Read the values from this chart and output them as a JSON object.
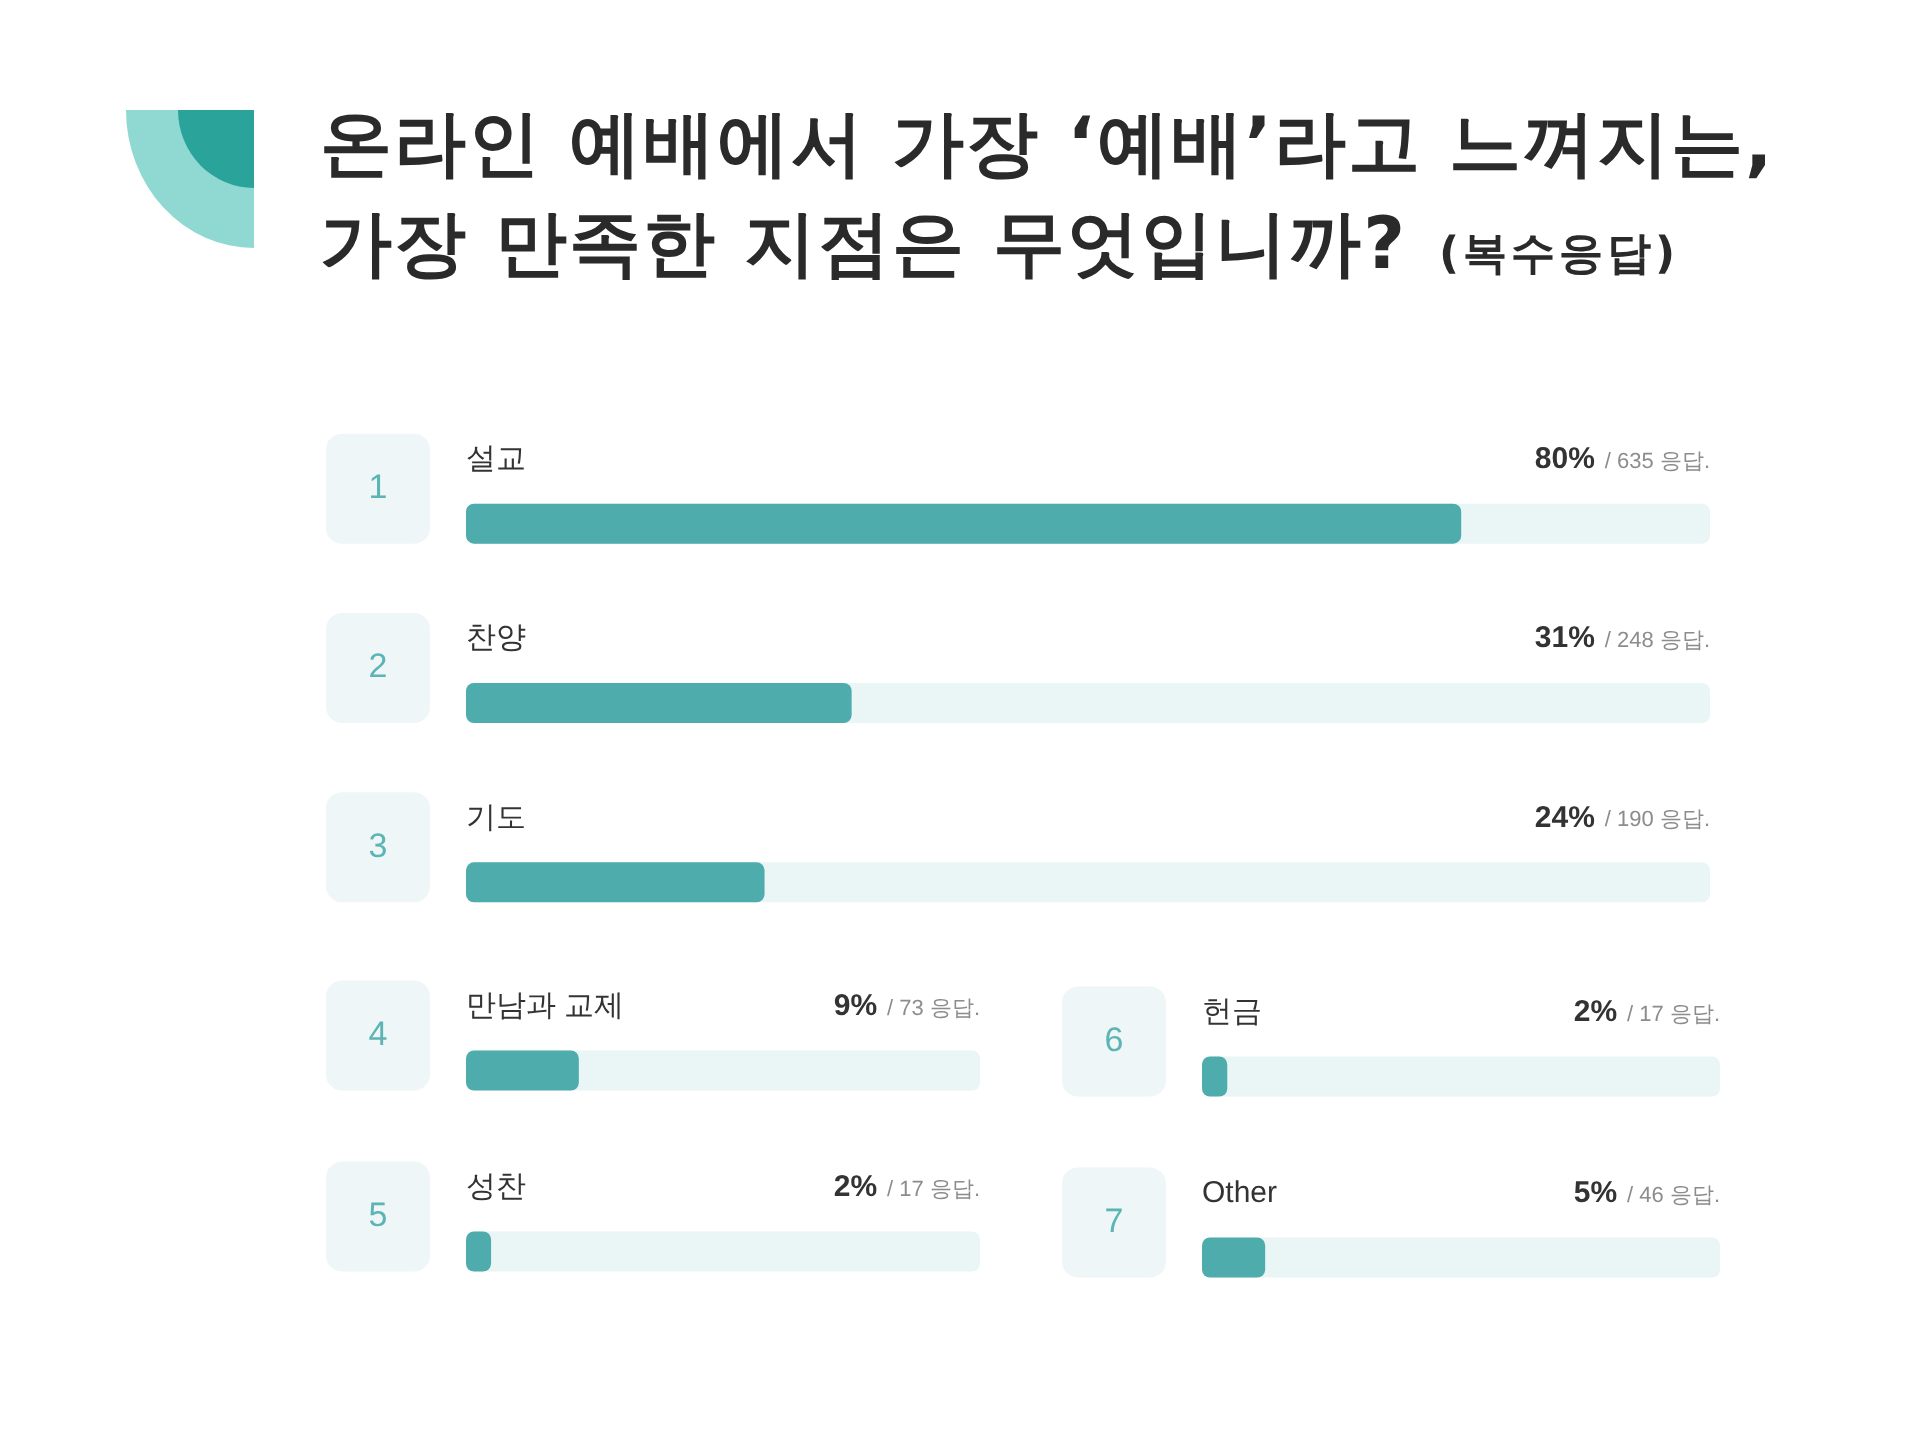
{
  "chart_data": [
    {
      "type": "bar",
      "orientation": "horizontal",
      "title": "온라인 예배에서 가장 ‘예배’라고 느껴지는,\n가장 만족한 지점은 무엇입니까?",
      "subtitle": "(복수응답)",
      "categories": [
        "설교",
        "찬양",
        "기도"
      ],
      "values": [
        80,
        31,
        24
      ],
      "value_labels": [
        "80% / 635 응답.",
        "31% / 248 응답.",
        "24% / 190 응답."
      ],
      "color": "#4eacac",
      "xlim": [
        0,
        100
      ],
      "tick_labels": "y",
      "grid": false,
      "annotations": [
        "1",
        "2",
        "3"
      ]
    },
    {
      "type": "bar",
      "orientation": "horizontal",
      "categories": [
        "만남과 교제",
        "성찬"
      ],
      "values": [
        9,
        2
      ],
      "value_labels": [
        "9% / 73 응답.",
        "2% / 17 응답."
      ],
      "color": "#4eacac",
      "xlim": [
        0,
        41
      ],
      "tick_labels": "y",
      "grid": false,
      "annotations": [
        "4",
        "5"
      ]
    },
    {
      "type": "bar",
      "orientation": "horizontal",
      "categories": [
        "헌금",
        "Other"
      ],
      "values": [
        2,
        5
      ],
      "value_labels": [
        "2% / 17 응답.",
        "5% / 46 응답."
      ],
      "color": "#4eacac",
      "xlim": [
        0,
        41
      ],
      "tick_labels": "y",
      "grid": false,
      "annotations": [
        "6",
        "7"
      ]
    }
  ]
}
